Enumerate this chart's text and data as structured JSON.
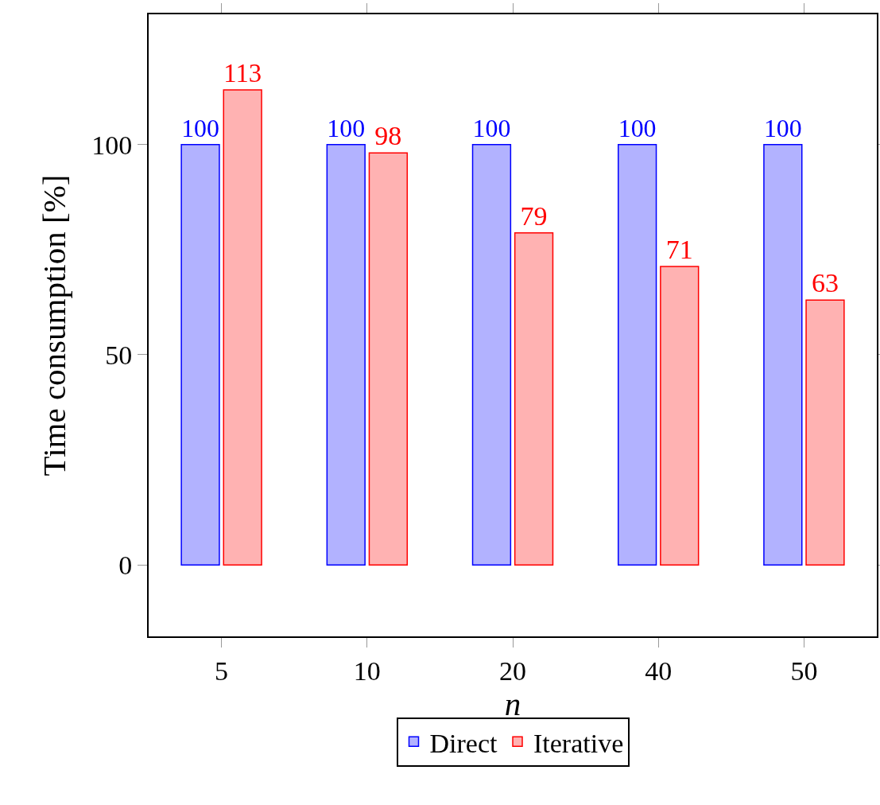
{
  "chart_data": {
    "type": "bar",
    "xlabel": "n",
    "ylabel": "Time consumption [%]",
    "categories": [
      "5",
      "10",
      "20",
      "40",
      "50"
    ],
    "series": [
      {
        "name": "Direct",
        "color": "#0000ff",
        "values": [
          100,
          100,
          100,
          100,
          100
        ]
      },
      {
        "name": "Iterative",
        "color": "#ff0000",
        "values": [
          113,
          98,
          79,
          71,
          63
        ]
      }
    ],
    "ylim": [
      -17,
      131
    ],
    "yticks": [
      0,
      50,
      100
    ],
    "data_labels": true,
    "grid": false,
    "legend": "bottom"
  }
}
